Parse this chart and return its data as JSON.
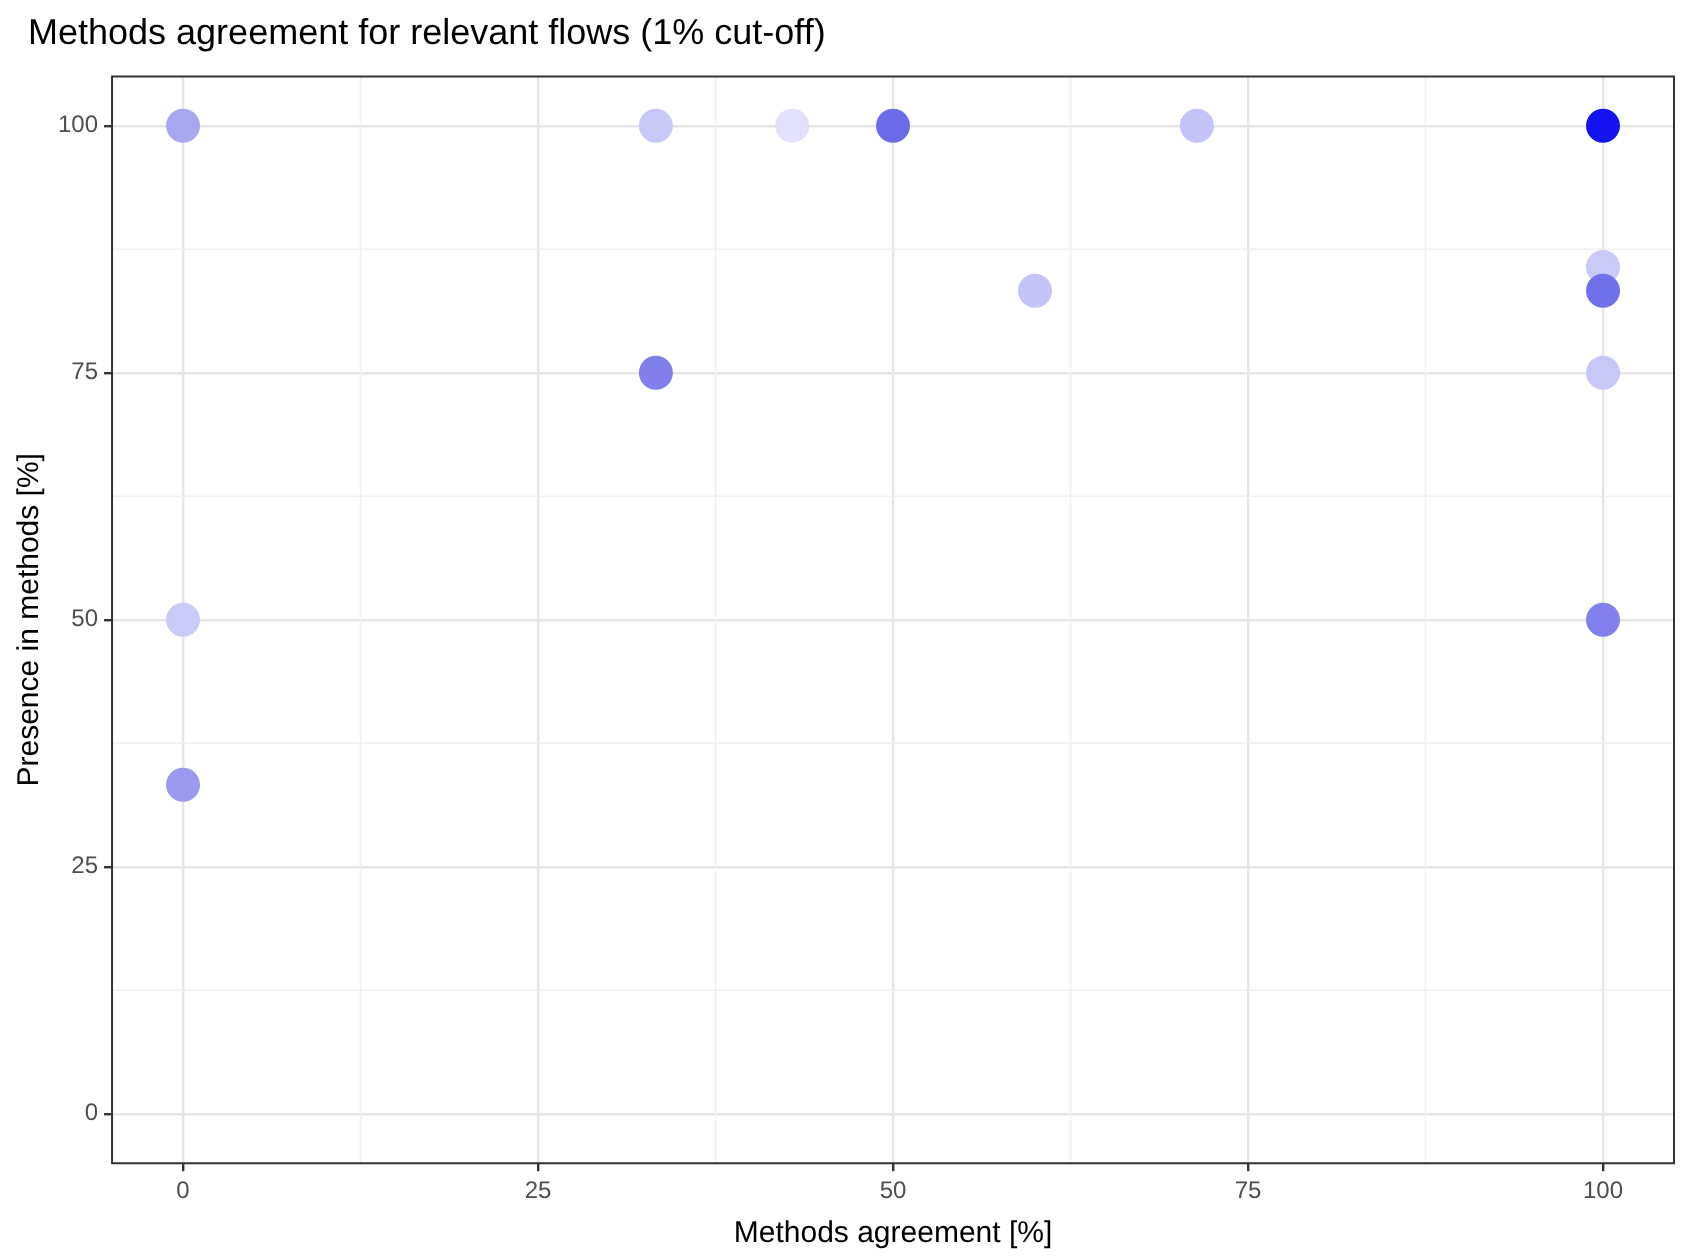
{
  "chart_data": {
    "type": "scatter",
    "title": "Methods agreement for relevant flows (1% cut-off)",
    "xlabel": "Methods agreement [%]",
    "ylabel": "Presence in methods [%]",
    "x": [
      0,
      33.3,
      42.9,
      50,
      71.4,
      100,
      60,
      100,
      100,
      100,
      33.3,
      0,
      0,
      100
    ],
    "values": [
      100,
      100,
      100,
      100,
      100,
      100,
      83.3,
      85.7,
      83.3,
      75,
      75,
      50,
      33.3,
      50
    ],
    "colors": [
      "#a8a8f2",
      "#c8c8f8",
      "#e2e2fc",
      "#6c6cea",
      "#c4c4f8",
      "#1414f0",
      "#c4c4f8",
      "#cacaf8",
      "#7070ea",
      "#c8c8f8",
      "#8080ec",
      "#cacaf8",
      "#9a9af0",
      "#8080ee"
    ],
    "xlim": [
      -5,
      105
    ],
    "ylim": [
      -5,
      105
    ],
    "xticks": [
      0,
      25,
      50,
      75,
      100
    ],
    "yticks": [
      0,
      25,
      50,
      75,
      100
    ],
    "grid": true,
    "marker": "circle"
  }
}
